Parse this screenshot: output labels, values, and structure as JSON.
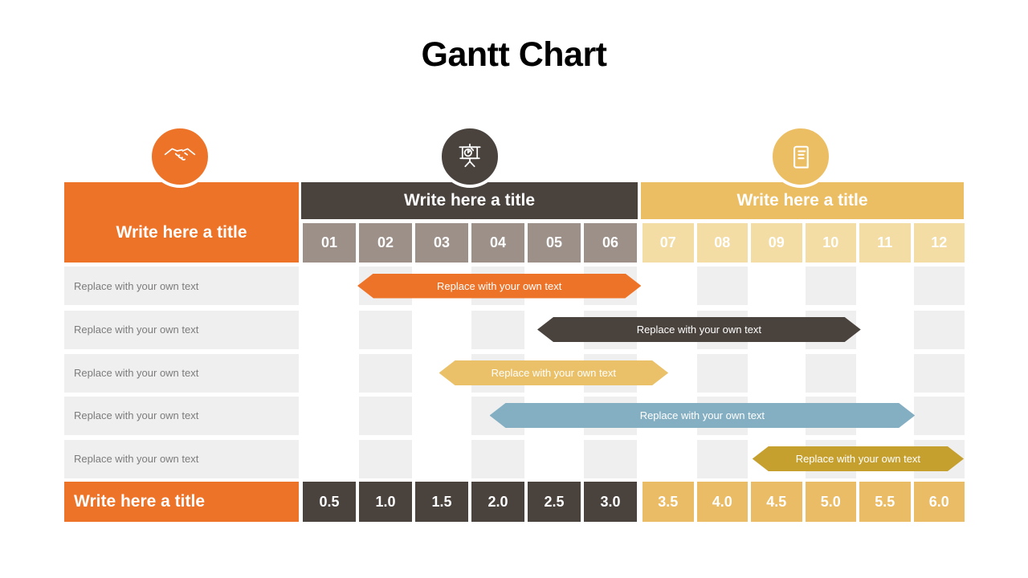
{
  "title": "Gantt Chart",
  "colors": {
    "orange": "#ED7329",
    "dark": "#4A423D",
    "gray_month_cell": "#9C9089",
    "yellow": "#EBBE63",
    "yellow_light_cell": "#F3DDA5",
    "row_bg": "#F0EFEF",
    "label_text": "#7C7C7C",
    "footer_dark_cell": "#4A423D",
    "footer_yellow_cell": "#EBBC66",
    "bar_tan": "#EAC169",
    "bar_blue": "#84AFC2",
    "bar_gold": "#C5A02F"
  },
  "header": {
    "left": {
      "title": "Write here a title",
      "icon": "handshake-icon"
    },
    "group1": {
      "title": "Write here a title",
      "icon": "presentation-icon",
      "months": [
        "01",
        "02",
        "03",
        "04",
        "05",
        "06"
      ]
    },
    "group2": {
      "title": "Write here a title",
      "icon": "book-icon",
      "months": [
        "07",
        "08",
        "09",
        "10",
        "11",
        "12"
      ]
    }
  },
  "rows": [
    {
      "label": "Replace with your own text"
    },
    {
      "label": "Replace with your own text"
    },
    {
      "label": "Replace with your own text"
    },
    {
      "label": "Replace with your own text"
    },
    {
      "label": "Replace with your own text"
    }
  ],
  "footer": {
    "title": "Write here a title",
    "values": [
      "0.5",
      "1.0",
      "1.5",
      "2.0",
      "2.5",
      "3.0",
      "3.5",
      "4.0",
      "4.5",
      "5.0",
      "5.5",
      "6.0"
    ]
  },
  "chart_data": {
    "type": "bar",
    "subtype": "gantt",
    "title": "Gantt Chart",
    "categories": [
      "01",
      "02",
      "03",
      "04",
      "05",
      "06",
      "07",
      "08",
      "09",
      "10",
      "11",
      "12"
    ],
    "axis_values": [
      0.5,
      1.0,
      1.5,
      2.0,
      2.5,
      3.0,
      3.5,
      4.0,
      4.5,
      5.0,
      5.5,
      6.0
    ],
    "tasks": [
      {
        "name": "Replace with your own text",
        "start_month": 1.0,
        "end_month": 6.05,
        "color": "#ED7329"
      },
      {
        "name": "Replace with your own text",
        "start_month": 4.2,
        "end_month": 10.1,
        "color": "#4A423D"
      },
      {
        "name": "Replace with your own text",
        "start_month": 2.45,
        "end_month": 6.55,
        "color": "#EAC169"
      },
      {
        "name": "Replace with your own text",
        "start_month": 3.35,
        "end_month": 11.1,
        "color": "#84AFC2"
      },
      {
        "name": "Replace with your own text",
        "start_month": 8.1,
        "end_month": 12.0,
        "color": "#C5A02F"
      }
    ]
  }
}
